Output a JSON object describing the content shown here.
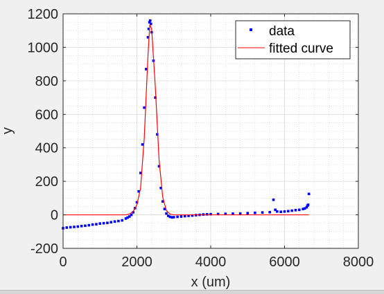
{
  "chart_data": {
    "type": "scatter",
    "xlabel": "x (um)",
    "ylabel": "y",
    "xlim": [
      0,
      8000
    ],
    "ylim": [
      -200,
      1200
    ],
    "xticks": [
      0,
      2000,
      4000,
      6000,
      8000
    ],
    "yticks": [
      -200,
      0,
      200,
      400,
      600,
      800,
      1000,
      1200
    ],
    "grid": true,
    "minor_grid": true,
    "legend_position": "top-right",
    "series": [
      {
        "name": "data",
        "kind": "markers",
        "color": "#0000ff",
        "x": [
          0,
          100,
          200,
          300,
          400,
          500,
          600,
          700,
          800,
          900,
          1000,
          1100,
          1200,
          1300,
          1400,
          1500,
          1600,
          1700,
          1750,
          1800,
          1850,
          1900,
          1950,
          2000,
          2050,
          2100,
          2150,
          2200,
          2250,
          2300,
          2320,
          2340,
          2360,
          2380,
          2400,
          2450,
          2500,
          2550,
          2600,
          2650,
          2700,
          2750,
          2800,
          2850,
          2900,
          2950,
          3000,
          3100,
          3200,
          3300,
          3400,
          3500,
          3600,
          3700,
          3800,
          3900,
          4000,
          4200,
          4400,
          4600,
          4800,
          5000,
          5200,
          5400,
          5600,
          5700,
          5750,
          5800,
          5900,
          6000,
          6100,
          6200,
          6300,
          6400,
          6500,
          6550,
          6600,
          6620,
          6640,
          6660
        ],
        "y": [
          -80,
          -76,
          -74,
          -72,
          -70,
          -67,
          -65,
          -62,
          -58,
          -56,
          -52,
          -50,
          -48,
          -44,
          -40,
          -37,
          -33,
          -22,
          -16,
          -10,
          0,
          15,
          40,
          75,
          140,
          250,
          420,
          640,
          870,
          1060,
          1110,
          1150,
          1160,
          1140,
          1090,
          920,
          700,
          480,
          290,
          160,
          80,
          35,
          8,
          -6,
          -12,
          -15,
          -14,
          -12,
          -10,
          -8,
          -6,
          -4,
          -2,
          0,
          2,
          3,
          4,
          5,
          6,
          7,
          8,
          10,
          12,
          14,
          16,
          90,
          30,
          20,
          18,
          20,
          22,
          25,
          28,
          30,
          35,
          38,
          45,
          55,
          60,
          125
        ]
      },
      {
        "name": "fitted curve",
        "kind": "line",
        "color": "#ff0000",
        "x": [
          0,
          1700,
          1800,
          1900,
          2000,
          2100,
          2200,
          2300,
          2350,
          2400,
          2500,
          2600,
          2700,
          2800,
          2900,
          3000,
          3200,
          3600,
          4000,
          4500,
          5000,
          5500,
          6000,
          6500,
          6660
        ],
        "y": [
          0,
          0,
          5,
          20,
          60,
          160,
          460,
          950,
          1135,
          1110,
          760,
          330,
          105,
          25,
          4,
          0,
          0,
          0,
          0,
          0,
          0,
          0,
          0,
          0,
          0
        ]
      }
    ]
  }
}
